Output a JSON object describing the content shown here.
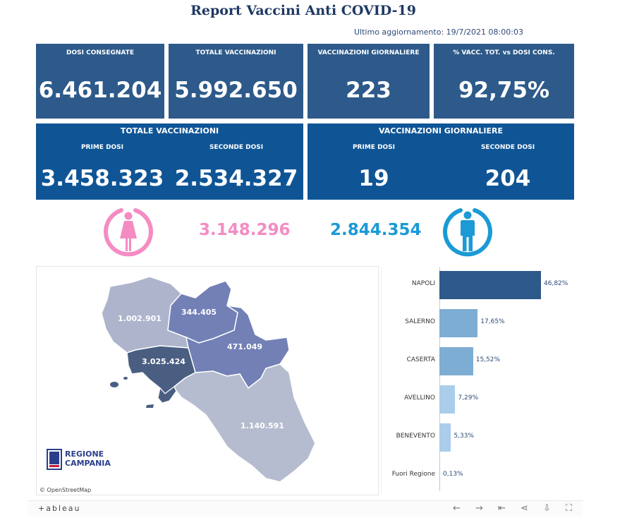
{
  "header": {
    "title": "Report Vaccini Anti COVID-19",
    "updated": "Ultimo aggiornamento: 19/7/2021 08:00:03"
  },
  "kpis": [
    {
      "label": "DOSI CONSEGNATE",
      "value": "6.461.204"
    },
    {
      "label": "TOTALE VACCINAZIONI",
      "value": "5.992.650"
    },
    {
      "label": "VACCINAZIONI GIORNALIERE",
      "value": "223"
    },
    {
      "label": "% VACC. TOT. vs DOSI CONS.",
      "value": "92,75%"
    }
  ],
  "totale_panel": {
    "title": "TOTALE VACCINAZIONI",
    "prime_label": "PRIME DOSI",
    "prime_value": "3.458.323",
    "seconde_label": "SECONDE DOSI",
    "seconde_value": "2.534.327"
  },
  "giornaliere_panel": {
    "title": "VACCINAZIONI GIORNALIERE",
    "prime_label": "PRIME DOSI",
    "prime_value": "19",
    "seconde_label": "SECONDE DOSI",
    "seconde_value": "204"
  },
  "gender": {
    "female": "3.148.296",
    "male": "2.844.354",
    "female_color": "#f48cc3",
    "male_color": "#1b9ad6"
  },
  "map": {
    "labels": {
      "caserta": "1.002.901",
      "benevento": "344.405",
      "avellino": "471.049",
      "napoli": "3.025.424",
      "salerno": "1.140.591"
    },
    "logo_line1": "REGIONE",
    "logo_line2": "CAMPANIA",
    "attribution": "© OpenStreetMap"
  },
  "chart_data": {
    "type": "bar",
    "orientation": "horizontal",
    "categories": [
      "NAPOLI",
      "SALERNO",
      "CASERTA",
      "AVELLINO",
      "BENEVENTO",
      "Fuori Regione"
    ],
    "values": [
      46.82,
      17.65,
      15.52,
      7.29,
      5.33,
      0.13
    ],
    "labels": [
      "46,82%",
      "17,65%",
      "15,52%",
      "7,29%",
      "5,33%",
      "0,13%"
    ],
    "colors": [
      "#2d5a8a",
      "#7eadd4",
      "#7eadd4",
      "#a9cdea",
      "#a9cdea",
      "#a9cdea"
    ]
  },
  "footer": {
    "brand": "+ableau"
  }
}
